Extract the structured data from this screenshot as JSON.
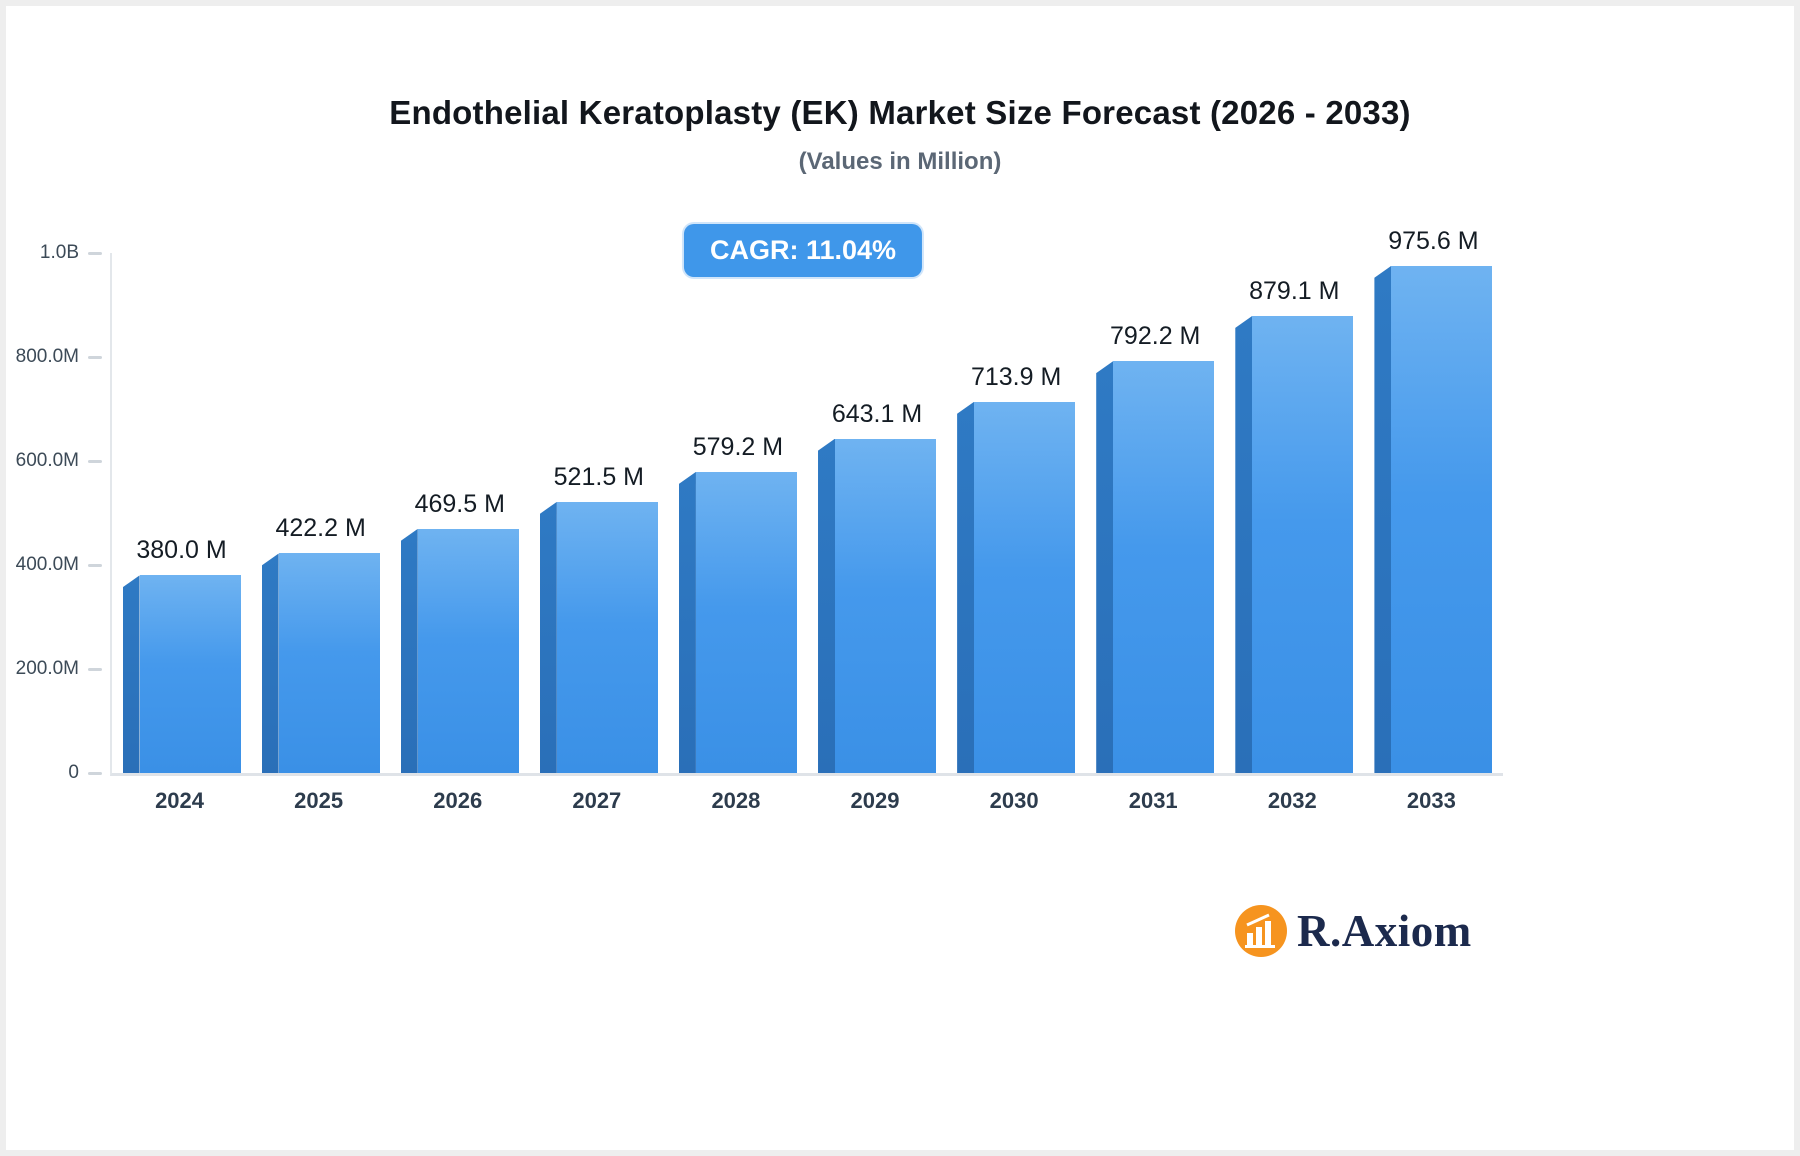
{
  "title": "Endothelial Keratoplasty (EK) Market Size Forecast (2026 - 2033)",
  "subtitle": "(Values in Million)",
  "badge": {
    "label": "CAGR: 11.04%",
    "bg_color": "#3f97ea"
  },
  "logo": {
    "text": "R.Axiom",
    "icon": "bar-chart-icon",
    "icon_color": "#f6941f",
    "text_color": "#1c2a4d"
  },
  "chart_data": {
    "type": "bar",
    "title": "Endothelial Keratoplasty (EK) Market Size Forecast (2026 - 2033)",
    "subtitle": "(Values in Million)",
    "xlabel": "",
    "ylabel": "",
    "categories": [
      "2024",
      "2025",
      "2026",
      "2027",
      "2028",
      "2029",
      "2030",
      "2031",
      "2032",
      "2033"
    ],
    "values": [
      380.0,
      422.2,
      469.5,
      521.5,
      579.2,
      643.1,
      713.9,
      792.2,
      879.1,
      975.6
    ],
    "data_labels": [
      "380.0 M",
      "422.2 M",
      "469.5 M",
      "521.5 M",
      "579.2 M",
      "643.1 M",
      "713.9 M",
      "792.2 M",
      "879.1 M",
      "975.6 M"
    ],
    "unit": "Million USD",
    "ylim": [
      0,
      1000
    ],
    "yticks": [
      {
        "value": 0,
        "label": "0"
      },
      {
        "value": 200,
        "label": "200.0M"
      },
      {
        "value": 400,
        "label": "400.0M"
      },
      {
        "value": 600,
        "label": "600.0M"
      },
      {
        "value": 800,
        "label": "800.0M"
      },
      {
        "value": 1000,
        "label": "1.0B"
      }
    ],
    "bar_colors": {
      "face_top": "#6fb3f1",
      "face_bottom": "#3a90e6",
      "side": "#2a6fb8"
    },
    "grid": false,
    "legend": false,
    "annotation": "CAGR: 11.04%"
  }
}
